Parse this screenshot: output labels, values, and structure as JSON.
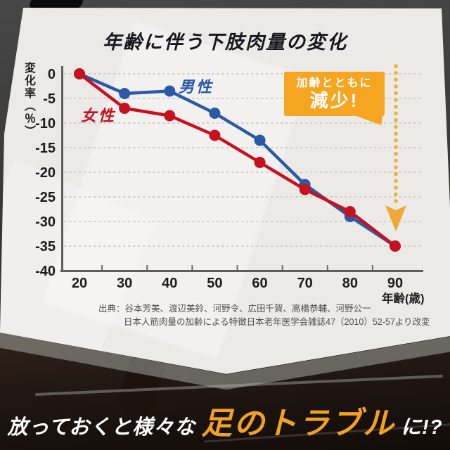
{
  "title": "年齢に伴う下肢肉量の変化",
  "chart_data": {
    "type": "line",
    "x": [
      20,
      30,
      40,
      50,
      60,
      70,
      80,
      90
    ],
    "xlabel": "年齢(歳)",
    "ylabel": "変化率（％）",
    "ylim": [
      -40,
      0
    ],
    "yticks": [
      0,
      -5,
      -10,
      -15,
      -20,
      -25,
      -30,
      -35,
      -40
    ],
    "grid": true,
    "legend_position": "inline-labels",
    "series": [
      {
        "name": "男性",
        "color": "#2a5aa6",
        "values": [
          0,
          -4,
          -3.5,
          -8,
          -13.5,
          -22.5,
          -29,
          -35
        ]
      },
      {
        "name": "女性",
        "color": "#c8101e",
        "values": [
          0,
          -7,
          -8.5,
          -12.5,
          -18,
          -23.5,
          -28,
          -35
        ]
      }
    ]
  },
  "callout": {
    "line1": "加齢とともに",
    "line2": "減少!",
    "color": "#f5a51f",
    "arrow_color": "#ebb234"
  },
  "source": {
    "line1": "出典：谷本芳美、渡辺美鈴、河野令、広田千賀、高橋恭輔、河野公一",
    "line2": "日本人筋肉量の加齢による特徴日本老年医学会雑誌47（2010）52-57より改変"
  },
  "footer": {
    "pre": "放っておくと様々な",
    "highlight": "足のトラブル",
    "post": "に!?",
    "highlight_color": "#f1a21f"
  }
}
